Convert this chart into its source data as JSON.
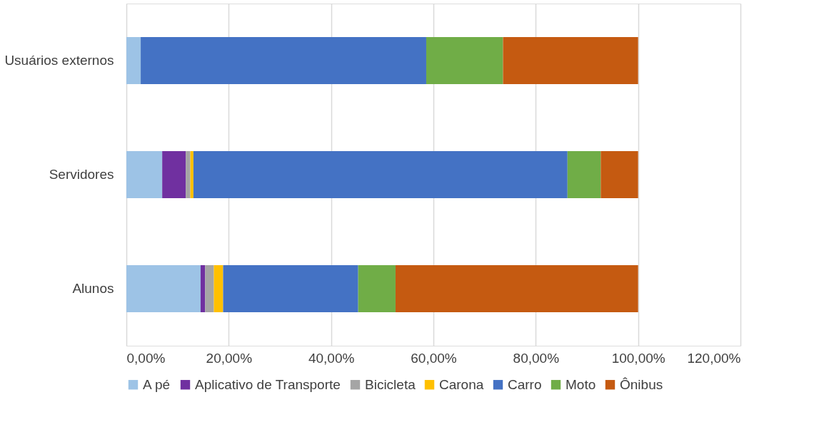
{
  "chart_data": {
    "type": "bar",
    "orientation": "horizontal",
    "stacked": true,
    "categories": [
      "Usuários externos",
      "Servidores",
      "Alunos"
    ],
    "series": [
      {
        "name": "A pé",
        "color": "#9dc3e6",
        "values": [
          2.8,
          7.0,
          14.5
        ]
      },
      {
        "name": "Aplicativo de Transporte",
        "color": "#7030a0",
        "values": [
          0,
          4.6,
          0.9
        ]
      },
      {
        "name": "Bicicleta",
        "color": "#a5a5a5",
        "values": [
          0,
          0.9,
          1.7
        ]
      },
      {
        "name": "Carona",
        "color": "#ffc000",
        "values": [
          0,
          0.6,
          1.8
        ]
      },
      {
        "name": "Carro",
        "color": "#4472c4",
        "values": [
          55.8,
          73.1,
          26.4
        ]
      },
      {
        "name": "Moto",
        "color": "#70ad47",
        "values": [
          15.0,
          6.5,
          7.3
        ]
      },
      {
        "name": "Ônibus",
        "color": "#c55a11",
        "values": [
          26.4,
          7.3,
          47.4
        ]
      }
    ],
    "xlim": [
      0,
      120
    ],
    "xticks": [
      {
        "value": 0,
        "label": "0,00%"
      },
      {
        "value": 20,
        "label": "20,00%"
      },
      {
        "value": 40,
        "label": "40,00%"
      },
      {
        "value": 60,
        "label": "60,00%"
      },
      {
        "value": 80,
        "label": "80,00%"
      },
      {
        "value": 100,
        "label": "100,00%"
      },
      {
        "value": 120,
        "label": "120,00%"
      }
    ],
    "grid": "x",
    "legend": "bottom"
  }
}
